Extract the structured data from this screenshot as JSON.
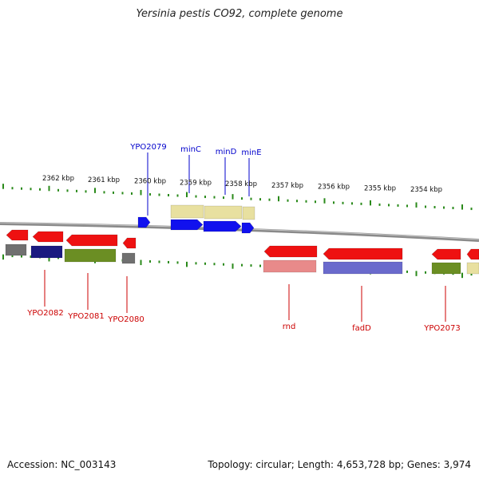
{
  "title": "Yersinia pestis CO92, complete genome",
  "footer": {
    "accession": "Accession: NC_003143",
    "summary": "Topology: circular; Length: 4,653,728 bp; Genes: 3,974"
  },
  "colors": {
    "backbone": "#8a8a8a",
    "tick": "#2a8a1a",
    "label_blue": "#0000cc",
    "label_red": "#cc0000",
    "cds_red": "#ee1111",
    "cds_blue": "#1111ee",
    "khaki": "#e8e0a0",
    "olive": "#6b8e23",
    "navy": "#1a1a80",
    "grey": "#707070",
    "pink": "#e88a8a",
    "slate": "#6a6acc"
  },
  "scale_labels": [
    "2362 kbp",
    "2361 kbp",
    "2360 kbp",
    "2359 kbp",
    "2358 kbp",
    "2357 kbp",
    "2356 kbp",
    "2355 kbp",
    "2354 kbp"
  ],
  "top_genes": [
    "YPO2079",
    "minC",
    "minD",
    "minE"
  ],
  "bottom_genes": [
    "YPO2082",
    "YPO2081",
    "YPO2080",
    "rnd",
    "fadD",
    "YPO2073"
  ]
}
